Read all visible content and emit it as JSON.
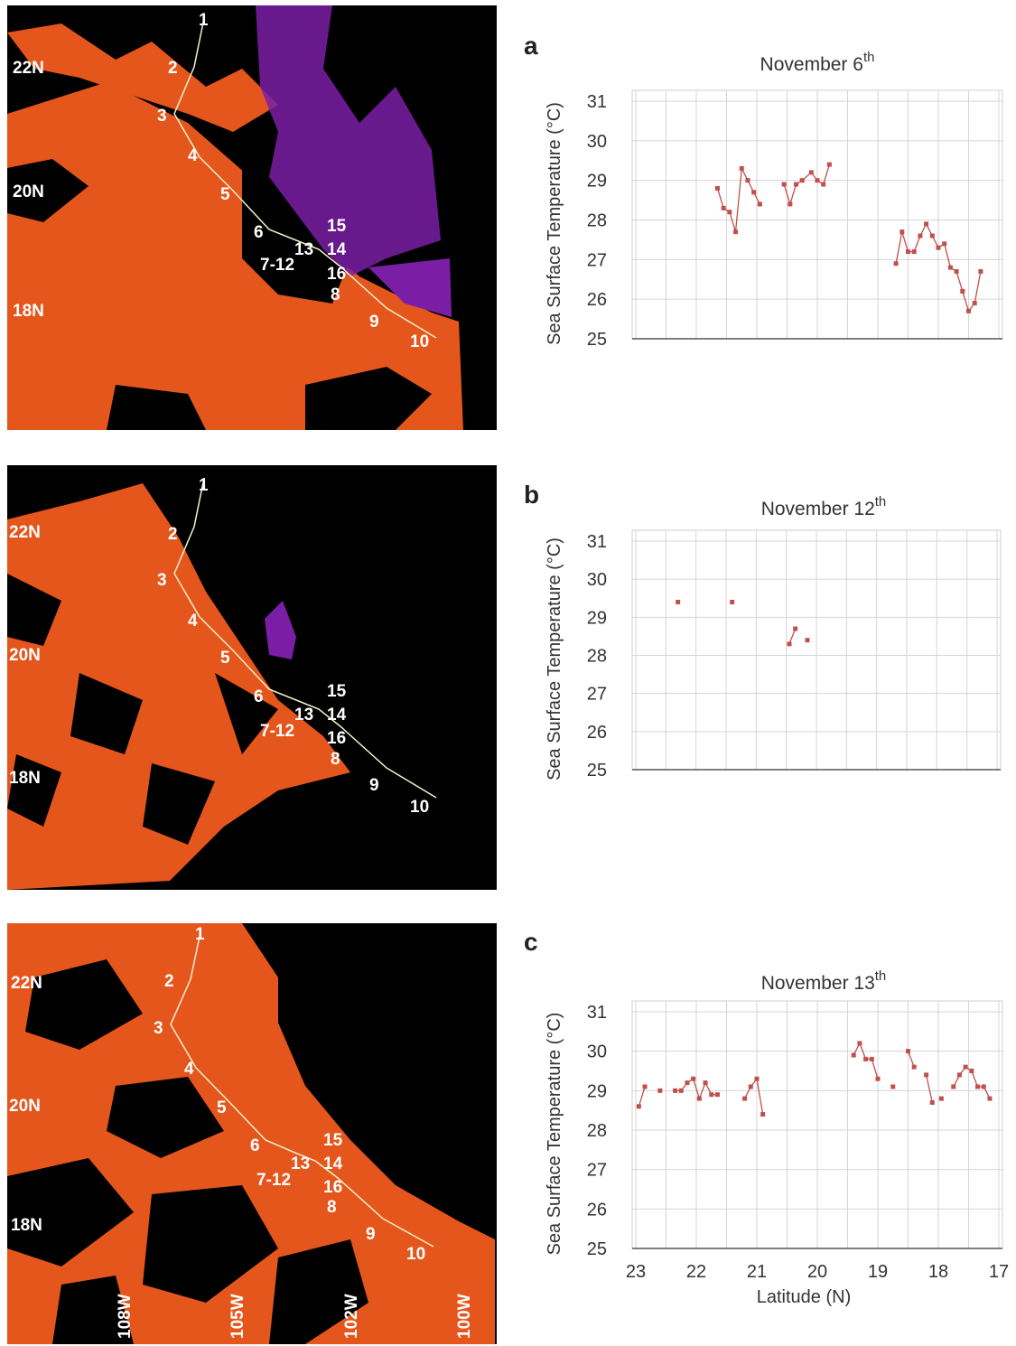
{
  "maps": [
    {
      "lat_labels": [
        "22N",
        "20N",
        "18N"
      ],
      "station_labels": [
        "1",
        "2",
        "3",
        "4",
        "5",
        "6",
        "13",
        "7-12",
        "15",
        "14",
        "16",
        "8",
        "9",
        "10"
      ],
      "lon_labels": []
    },
    {
      "lat_labels": [
        "22N",
        "20N",
        "18N"
      ],
      "station_labels": [
        "1",
        "2",
        "3",
        "4",
        "5",
        "6",
        "13",
        "7-12",
        "15",
        "14",
        "16",
        "8",
        "9",
        "10"
      ],
      "lon_labels": []
    },
    {
      "lat_labels": [
        "22N",
        "20N",
        "18N"
      ],
      "station_labels": [
        "1",
        "2",
        "3",
        "4",
        "5",
        "6",
        "13",
        "7-12",
        "15",
        "14",
        "16",
        "8",
        "9",
        "10"
      ],
      "lon_labels": [
        "108W",
        "105W",
        "102W",
        "100W"
      ]
    }
  ],
  "colors": {
    "sst_orange": "#e5561c",
    "cloud_black": "#000000",
    "land_purple": "#7a1fa5",
    "series_red": "#c0504d",
    "grid": "#d6d6d6",
    "axis": "#555555",
    "track_line": "#f4f1c9"
  },
  "chart_data": [
    {
      "panel": "a",
      "type": "line",
      "title": "November 6",
      "title_sup": "th",
      "ylabel": "Sea Surface Temperature (°C)",
      "xlabel": "",
      "ylim": [
        25,
        31
      ],
      "xlim": [
        23,
        17
      ],
      "x_reversed": true,
      "grid": true,
      "yticks": [
        "25",
        "26",
        "27",
        "28",
        "29",
        "30",
        "31"
      ],
      "xticks": [],
      "segments": [
        [
          [
            21.65,
            28.8
          ],
          [
            21.55,
            28.3
          ],
          [
            21.45,
            28.2
          ],
          [
            21.35,
            27.7
          ],
          [
            21.25,
            29.3
          ],
          [
            21.15,
            29.0
          ],
          [
            21.05,
            28.7
          ],
          [
            20.95,
            28.4
          ]
        ],
        [
          [
            20.55,
            28.9
          ],
          [
            20.45,
            28.4
          ],
          [
            20.35,
            28.9
          ],
          [
            20.25,
            29.0
          ],
          [
            20.1,
            29.2
          ],
          [
            20.0,
            29.0
          ],
          [
            19.9,
            28.9
          ],
          [
            19.8,
            29.4
          ]
        ],
        [
          [
            18.7,
            26.9
          ],
          [
            18.6,
            27.7
          ],
          [
            18.5,
            27.2
          ],
          [
            18.4,
            27.2
          ],
          [
            18.3,
            27.6
          ],
          [
            18.2,
            27.9
          ],
          [
            18.1,
            27.6
          ],
          [
            18.0,
            27.3
          ],
          [
            17.9,
            27.4
          ],
          [
            17.8,
            26.8
          ],
          [
            17.7,
            26.7
          ],
          [
            17.6,
            26.2
          ],
          [
            17.5,
            25.7
          ],
          [
            17.4,
            25.9
          ],
          [
            17.3,
            26.7
          ]
        ]
      ]
    },
    {
      "panel": "b",
      "type": "line",
      "title": "November 12",
      "title_sup": "th",
      "ylabel": "Sea Surface Temperature (°C)",
      "xlabel": "",
      "ylim": [
        25,
        31
      ],
      "xlim": [
        23,
        17
      ],
      "x_reversed": true,
      "grid": true,
      "yticks": [
        "25",
        "26",
        "27",
        "28",
        "29",
        "30",
        "31"
      ],
      "xticks": [],
      "segments": [
        [
          [
            22.3,
            29.4
          ]
        ],
        [
          [
            21.4,
            29.4
          ]
        ],
        [
          [
            20.45,
            28.3
          ],
          [
            20.35,
            28.7
          ]
        ],
        [
          [
            20.15,
            28.4
          ]
        ]
      ]
    },
    {
      "panel": "c",
      "type": "line",
      "title": "November 13",
      "title_sup": "th",
      "ylabel": "Sea Surface Temperature (°C)",
      "xlabel": "Latitude (N)",
      "ylim": [
        25,
        31
      ],
      "xlim": [
        23,
        17
      ],
      "x_reversed": true,
      "grid": true,
      "yticks": [
        "25",
        "26",
        "27",
        "28",
        "29",
        "30",
        "31"
      ],
      "xticks": [
        "23",
        "22",
        "21",
        "20",
        "19",
        "18",
        "17"
      ],
      "segments": [
        [
          [
            22.95,
            28.6
          ],
          [
            22.85,
            29.1
          ]
        ],
        [
          [
            22.6,
            29.0
          ]
        ],
        [
          [
            22.35,
            29.0
          ],
          [
            22.25,
            29.0
          ],
          [
            22.15,
            29.2
          ],
          [
            22.05,
            29.3
          ],
          [
            21.95,
            28.8
          ],
          [
            21.85,
            29.2
          ],
          [
            21.75,
            28.9
          ],
          [
            21.65,
            28.9
          ]
        ],
        [
          [
            21.2,
            28.8
          ],
          [
            21.1,
            29.1
          ],
          [
            21.0,
            29.3
          ],
          [
            20.9,
            28.4
          ]
        ],
        [
          [
            19.4,
            29.9
          ],
          [
            19.3,
            30.2
          ],
          [
            19.2,
            29.8
          ],
          [
            19.1,
            29.8
          ],
          [
            19.0,
            29.3
          ]
        ],
        [
          [
            18.75,
            29.1
          ]
        ],
        [
          [
            18.5,
            30.0
          ],
          [
            18.4,
            29.6
          ]
        ],
        [
          [
            18.2,
            29.4
          ],
          [
            18.1,
            28.7
          ]
        ],
        [
          [
            17.95,
            28.8
          ]
        ],
        [
          [
            17.75,
            29.1
          ],
          [
            17.65,
            29.4
          ],
          [
            17.55,
            29.6
          ],
          [
            17.45,
            29.5
          ],
          [
            17.35,
            29.1
          ],
          [
            17.25,
            29.1
          ],
          [
            17.15,
            28.8
          ]
        ]
      ]
    }
  ]
}
